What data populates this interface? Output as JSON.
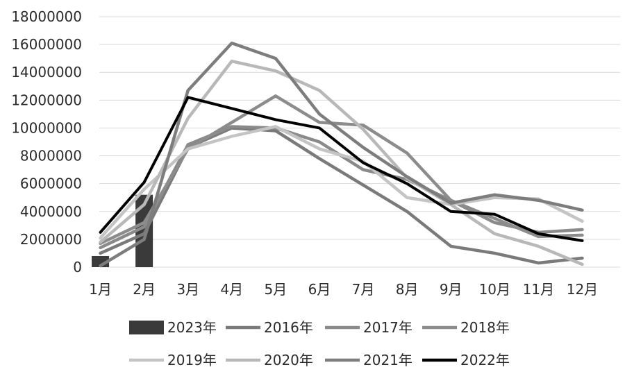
{
  "chart_data": {
    "type": "line",
    "title": "",
    "xlabel": "",
    "ylabel": "",
    "ylim": [
      0,
      18000000
    ],
    "y_ticks": [
      "0",
      "2000000",
      "4000000",
      "6000000",
      "8000000",
      "10000000",
      "12000000",
      "14000000",
      "16000000",
      "18000000"
    ],
    "categories": [
      "1月",
      "2月",
      "3月",
      "4月",
      "5月",
      "6月",
      "7月",
      "8月",
      "9月",
      "10月",
      "11月",
      "12月"
    ],
    "grid": true,
    "legend_position": "bottom",
    "bar_series": {
      "name": "2023年",
      "color": "#3a3a3a",
      "values": [
        800000,
        5200000
      ]
    },
    "series": [
      {
        "name": "2016年",
        "color": "#7a7a7a",
        "values": [
          1000000,
          2400000,
          8600000,
          10000000,
          9800000,
          7800000,
          5900000,
          4000000,
          1500000,
          1000000,
          300000,
          650000
        ]
      },
      {
        "name": "2017年",
        "color": "#8a8a8a",
        "values": [
          1400000,
          2900000,
          8800000,
          10100000,
          10000000,
          9000000,
          7000000,
          6300000,
          4800000,
          3200000,
          2500000,
          2700000
        ]
      },
      {
        "name": "2018年",
        "color": "#8c8c8c",
        "values": [
          1700000,
          3200000,
          8500000,
          10400000,
          12300000,
          10400000,
          10200000,
          8200000,
          4800000,
          3500000,
          2200000,
          2300000
        ]
      },
      {
        "name": "2019年",
        "color": "#c4c4c4",
        "values": [
          2100000,
          5600000,
          8500000,
          9400000,
          10100000,
          8500000,
          7600000,
          5000000,
          4500000,
          5000000,
          4900000,
          3300000
        ]
      },
      {
        "name": "2020年",
        "color": "#b8b8b8",
        "values": [
          1800000,
          4500000,
          10700000,
          14800000,
          14100000,
          12700000,
          9900000,
          6400000,
          4500000,
          2400000,
          1500000,
          200000
        ]
      },
      {
        "name": "2021年",
        "color": "#7d7d7d",
        "values": [
          100000,
          2000000,
          12700000,
          16100000,
          15000000,
          11000000,
          8600000,
          6500000,
          4600000,
          5200000,
          4800000,
          4100000
        ]
      },
      {
        "name": "2022年",
        "color": "#000000",
        "values": [
          2500000,
          6100000,
          12200000,
          11400000,
          10600000,
          10000000,
          7500000,
          6000000,
          4000000,
          3800000,
          2400000,
          1900000
        ]
      }
    ]
  }
}
